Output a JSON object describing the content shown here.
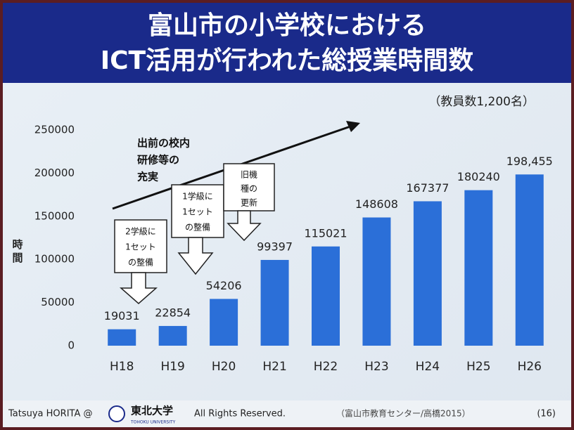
{
  "chart_data": {
    "type": "bar",
    "title": [
      "富山市の小学校における",
      "ICT活用が行われた総授業時間数"
    ],
    "subtitle": "（教員数1,200名）",
    "y_label": "時間",
    "categories": [
      "H18",
      "H19",
      "H20",
      "H21",
      "H22",
      "H23",
      "H24",
      "H25",
      "H26"
    ],
    "values": [
      19031,
      22854,
      54206,
      99397,
      115021,
      148608,
      167377,
      180240,
      198455
    ],
    "value_labels": [
      "19031",
      "22854",
      "54206",
      "99397",
      "115021",
      "148608",
      "167377",
      "180240",
      "198,455"
    ],
    "color": "#2b6fd8",
    "ylim": [
      0,
      250000
    ],
    "yticks": [
      0,
      50000,
      100000,
      150000,
      200000,
      250000
    ],
    "grid": false,
    "annotations": [
      {
        "lines": [
          "出前の校内",
          "研修等の",
          "充実"
        ]
      },
      {
        "lines": [
          "2学級に",
          "1セット",
          "の整備"
        ]
      },
      {
        "lines": [
          "1学級に",
          "1セット",
          "の整備"
        ]
      },
      {
        "lines": [
          "旧機",
          "種の",
          "更新"
        ]
      }
    ]
  },
  "footer": {
    "author": "Tatsuya HORITA @",
    "logo": "東北大学",
    "logo_sub": "TOHOKU UNIVERSITY",
    "rights": "All Rights Reserved.",
    "source": "（富山市教育センター/高橋2015）",
    "page": "(16)"
  }
}
